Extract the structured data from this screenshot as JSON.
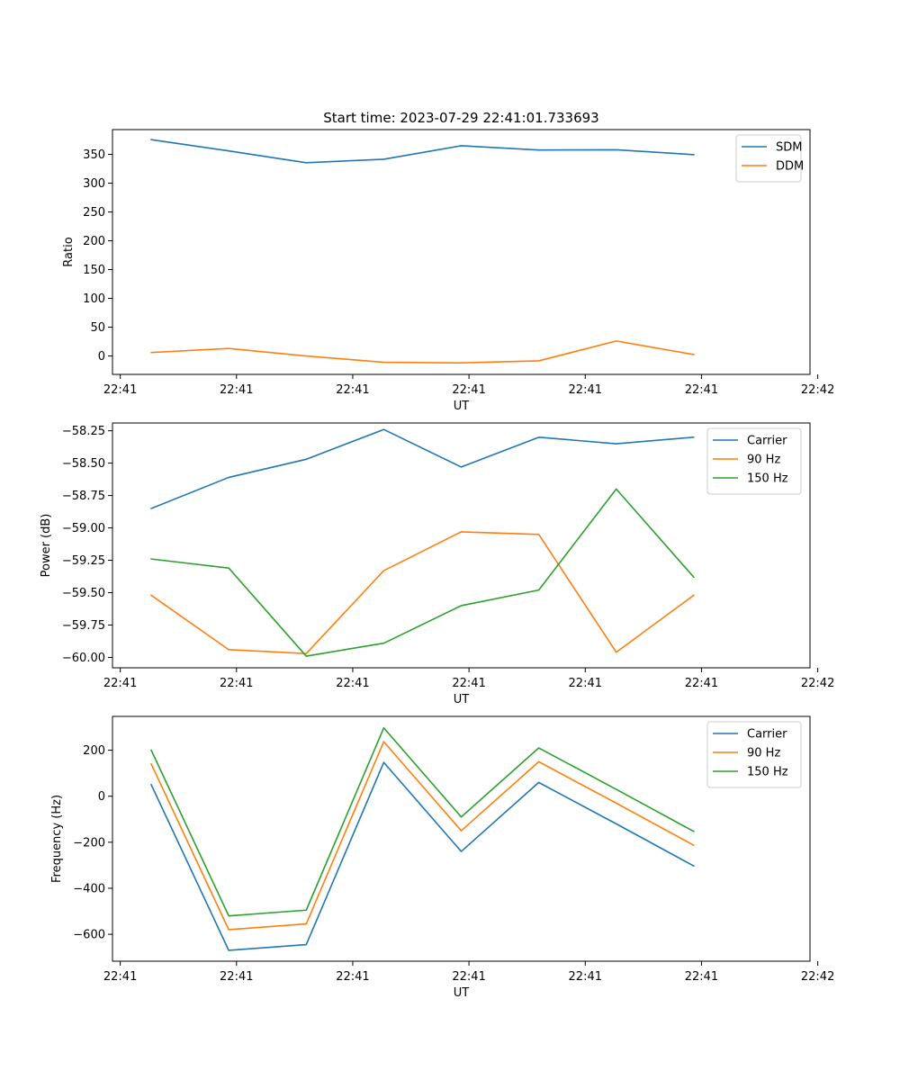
{
  "chart_data": [
    {
      "type": "line",
      "title": "Start time: 2023-07-29 22:41:01.733693",
      "xlabel": "UT",
      "ylabel": "Ratio",
      "xlim": [
        0,
        9
      ],
      "ylim": [
        -32,
        393
      ],
      "x": [
        0.5,
        1.5,
        2.5,
        3.5,
        4.5,
        5.5,
        6.5,
        7.5
      ],
      "xticks": [
        0.1,
        1.6,
        3.1,
        4.6,
        6.1,
        7.6,
        9.1
      ],
      "xtick_labels": [
        "22:41",
        "22:41",
        "22:41",
        "22:41",
        "22:41",
        "22:41",
        "22:42"
      ],
      "yticks": [
        0,
        50,
        100,
        150,
        200,
        250,
        300,
        350
      ],
      "ytick_labels": [
        "0",
        "50",
        "100",
        "150",
        "200",
        "250",
        "300",
        "350"
      ],
      "legend_position": "top-right",
      "series": [
        {
          "name": "SDM",
          "color": "#1f77b4",
          "values": [
            375.5,
            356,
            335.5,
            341.5,
            365,
            357.5,
            358,
            349.5
          ]
        },
        {
          "name": "DDM",
          "color": "#ff7f0e",
          "values": [
            6,
            13,
            0,
            -11,
            -12,
            -8.5,
            26,
            2.5
          ]
        }
      ]
    },
    {
      "type": "line",
      "title": "",
      "xlabel": "UT",
      "ylabel": "Power (dB)",
      "xlim": [
        0,
        9
      ],
      "ylim": [
        -60.08,
        -58.19
      ],
      "x": [
        0.5,
        1.5,
        2.5,
        3.5,
        4.5,
        5.5,
        6.5,
        7.5
      ],
      "xticks": [
        0.1,
        1.6,
        3.1,
        4.6,
        6.1,
        7.6,
        9.1
      ],
      "xtick_labels": [
        "22:41",
        "22:41",
        "22:41",
        "22:41",
        "22:41",
        "22:41",
        "22:42"
      ],
      "yticks": [
        -60.0,
        -59.75,
        -59.5,
        -59.25,
        -59.0,
        -58.75,
        -58.5,
        -58.25
      ],
      "ytick_labels": [
        "−60.00",
        "−59.75",
        "−59.50",
        "−59.25",
        "−59.00",
        "−58.75",
        "−58.50",
        "−58.25"
      ],
      "legend_position": "top-right",
      "series": [
        {
          "name": "Carrier",
          "color": "#1f77b4",
          "values": [
            -58.85,
            -58.61,
            -58.47,
            -58.24,
            -58.53,
            -58.3,
            -58.35,
            -58.3
          ]
        },
        {
          "name": "90 Hz",
          "color": "#ff7f0e",
          "values": [
            -59.52,
            -59.94,
            -59.97,
            -59.33,
            -59.03,
            -59.05,
            -59.96,
            -59.52
          ]
        },
        {
          "name": "150 Hz",
          "color": "#2ca02c",
          "values": [
            -59.24,
            -59.31,
            -59.99,
            -59.89,
            -59.6,
            -59.48,
            -58.7,
            -59.38
          ]
        }
      ]
    },
    {
      "type": "line",
      "title": "",
      "xlabel": "UT",
      "ylabel": "Frequency (Hz)",
      "xlim": [
        0,
        9
      ],
      "ylim": [
        -717,
        347
      ],
      "x": [
        0.5,
        1.5,
        2.5,
        3.5,
        4.5,
        5.5,
        6.5,
        7.5
      ],
      "xticks": [
        0.1,
        1.6,
        3.1,
        4.6,
        6.1,
        7.6,
        9.1
      ],
      "xtick_labels": [
        "22:41",
        "22:41",
        "22:41",
        "22:41",
        "22:41",
        "22:41",
        "22:42"
      ],
      "yticks": [
        -600,
        -400,
        -200,
        0,
        200
      ],
      "ytick_labels": [
        "−600",
        "−400",
        "−200",
        "0",
        "200"
      ],
      "legend_position": "top-right",
      "series": [
        {
          "name": "Carrier",
          "color": "#1f77b4",
          "values": [
            50,
            -670,
            -645,
            147,
            -240,
            60,
            -120,
            -303
          ]
        },
        {
          "name": "90 Hz",
          "color": "#ff7f0e",
          "values": [
            140,
            -580,
            -555,
            237,
            -150,
            150,
            -30,
            -213
          ]
        },
        {
          "name": "150 Hz",
          "color": "#2ca02c",
          "values": [
            200,
            -520,
            -495,
            297,
            -90,
            210,
            30,
            -153
          ]
        }
      ]
    }
  ]
}
